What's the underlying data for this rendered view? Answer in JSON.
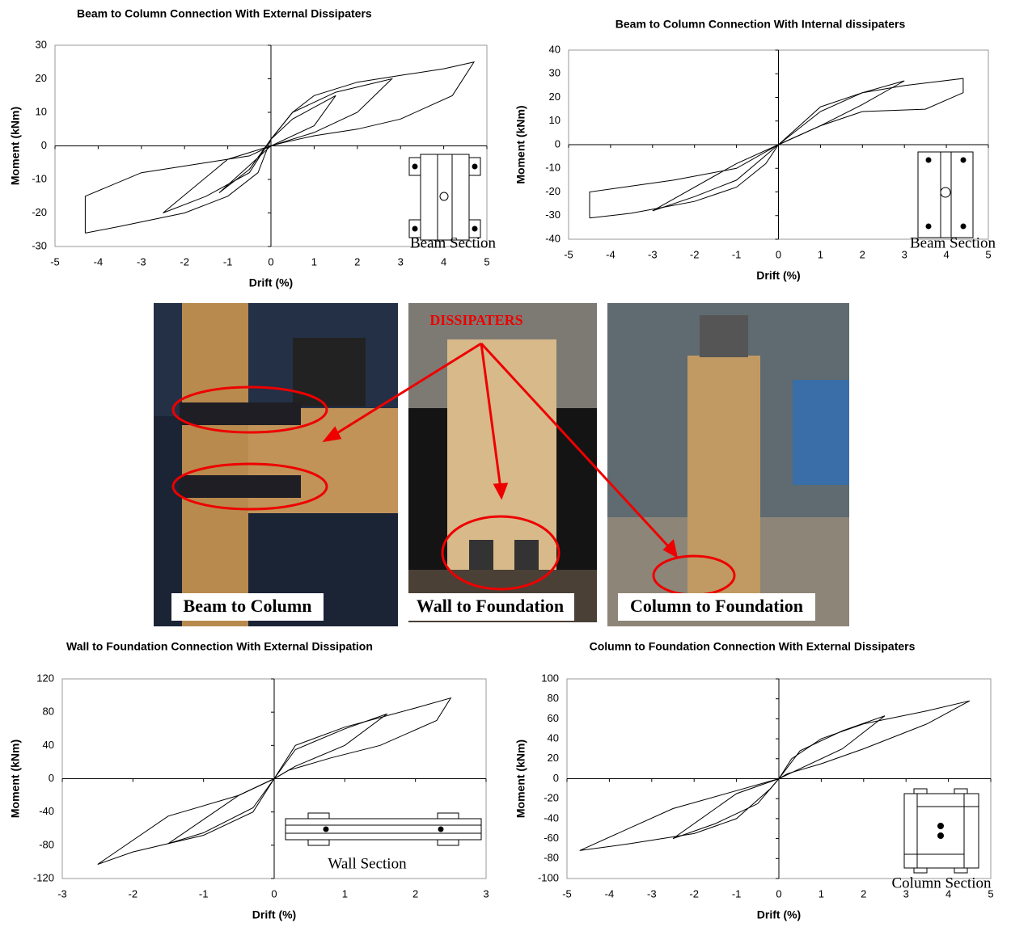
{
  "chart_data": [
    {
      "type": "line",
      "title": "Beam to Column Connection With External Dissipaters",
      "xlabel": "Drift (%)",
      "ylabel": "Moment (kNm)",
      "xlim": [
        -5,
        5
      ],
      "xticks": [
        -5,
        -4,
        -3,
        -2,
        -1,
        0,
        1,
        2,
        3,
        4,
        5
      ],
      "ylim": [
        -30,
        30
      ],
      "yticks": [
        -30,
        -20,
        -10,
        0,
        10,
        20,
        30
      ],
      "annotation": "Beam Section",
      "series": [
        {
          "color": "#000000",
          "x": [
            -4.3,
            -3.5,
            -2,
            -1,
            -0.3,
            0,
            0.5,
            1,
            2,
            3,
            4,
            4.7,
            4.2,
            3,
            2,
            1,
            0.3,
            0,
            -0.5,
            -1.5,
            -3,
            -4.3,
            -4.3
          ],
          "values": [
            -26,
            -24,
            -20,
            -15,
            -8,
            2,
            10,
            15,
            19,
            21,
            23,
            25,
            15,
            8,
            5,
            3,
            1,
            0,
            -3,
            -5,
            -8,
            -15,
            -26
          ]
        },
        {
          "color": "#000000",
          "x": [
            -2.5,
            -1.5,
            -0.5,
            0,
            0.5,
            1.5,
            2.8,
            2,
            1,
            0,
            -1,
            -2.5
          ],
          "values": [
            -20,
            -15,
            -8,
            2,
            10,
            16,
            20,
            10,
            4,
            0,
            -4,
            -20
          ]
        },
        {
          "color": "#000000",
          "x": [
            -1.2,
            -0.5,
            0,
            0.5,
            1.5,
            1,
            0,
            -1.2
          ],
          "values": [
            -14,
            -7,
            2,
            8,
            15,
            6,
            0,
            -14
          ]
        }
      ]
    },
    {
      "type": "line",
      "title": "Beam to Column Connection With Internal dissipaters",
      "xlabel": "Drift (%)",
      "ylabel": "Moment (kNm)",
      "xlim": [
        -5,
        5
      ],
      "xticks": [
        -5,
        -4,
        -3,
        -2,
        -1,
        0,
        1,
        2,
        3,
        4,
        5
      ],
      "ylim": [
        -40,
        40
      ],
      "yticks": [
        -40,
        -30,
        -20,
        -10,
        0,
        10,
        20,
        30,
        40
      ],
      "annotation": "Beam Section",
      "series": [
        {
          "color": "#000000",
          "x": [
            -4.5,
            -3.5,
            -2,
            -1,
            -0.3,
            0,
            0.5,
            1,
            2,
            3,
            4.4,
            4.4,
            3.5,
            2,
            1,
            0,
            -1,
            -2.5,
            -4.5,
            -4.5
          ],
          "values": [
            -31,
            -29,
            -24,
            -18,
            -8,
            0,
            8,
            16,
            22,
            25,
            28,
            22,
            15,
            14,
            8,
            0,
            -10,
            -15,
            -20,
            -31
          ]
        },
        {
          "color": "#000000",
          "x": [
            -3,
            -2,
            -1,
            0,
            1,
            2,
            3,
            2,
            1,
            0,
            -1,
            -3
          ],
          "values": [
            -28,
            -22,
            -15,
            0,
            14,
            22,
            27,
            17,
            8,
            0,
            -8,
            -28
          ]
        }
      ]
    },
    {
      "type": "line",
      "title": "Wall to Foundation Connection With External Dissipation",
      "xlabel": "Drift (%)",
      "ylabel": "Moment (kNm)",
      "xlim": [
        -3,
        3
      ],
      "xticks": [
        -3,
        -2,
        -1,
        0,
        1,
        2,
        3
      ],
      "ylim": [
        -120,
        120
      ],
      "yticks": [
        -120,
        -80,
        -40,
        0,
        40,
        80,
        120
      ],
      "annotation": "Wall Section",
      "series": [
        {
          "color": "#000000",
          "x": [
            -2.5,
            -2,
            -1,
            -0.3,
            0,
            0.3,
            1,
            2,
            2.5,
            2.3,
            1.5,
            0.8,
            0.2,
            0,
            -0.5,
            -1.5,
            -2.5
          ],
          "values": [
            -103,
            -88,
            -68,
            -40,
            0,
            40,
            62,
            85,
            97,
            70,
            40,
            25,
            10,
            0,
            -20,
            -45,
            -103
          ]
        },
        {
          "color": "#000000",
          "x": [
            -1.5,
            -1,
            -0.3,
            0,
            0.3,
            1,
            1.6,
            1,
            0.3,
            0,
            -0.5,
            -1.5
          ],
          "values": [
            -78,
            -65,
            -35,
            0,
            35,
            60,
            78,
            40,
            15,
            0,
            -20,
            -78
          ]
        }
      ]
    },
    {
      "type": "line",
      "title": "Column to Foundation Connection With External Dissipaters",
      "xlabel": "Drift (%)",
      "ylabel": "Moment (kNm)",
      "xlim": [
        -5,
        5
      ],
      "xticks": [
        -5,
        -4,
        -3,
        -2,
        -1,
        0,
        1,
        2,
        3,
        4,
        5
      ],
      "ylim": [
        -100,
        100
      ],
      "yticks": [
        -100,
        -80,
        -60,
        -40,
        -20,
        0,
        20,
        40,
        60,
        80,
        100
      ],
      "annotation": "Column Section",
      "series": [
        {
          "color": "#000000",
          "x": [
            -4.7,
            -3.5,
            -2,
            -1,
            -0.2,
            0,
            0.3,
            1,
            2,
            3.5,
            4.5,
            3.5,
            2,
            1,
            0.2,
            0,
            -1,
            -2.5,
            -4.7
          ],
          "values": [
            -72,
            -65,
            -55,
            -40,
            -10,
            0,
            20,
            40,
            55,
            68,
            78,
            55,
            30,
            15,
            5,
            0,
            -12,
            -30,
            -72
          ]
        },
        {
          "color": "#000000",
          "x": [
            -2.5,
            -1.5,
            -0.5,
            0,
            0.5,
            1.5,
            2.5,
            1.5,
            0.5,
            0,
            -1,
            -2.5
          ],
          "values": [
            -60,
            -45,
            -25,
            0,
            28,
            48,
            63,
            30,
            10,
            0,
            -15,
            -60
          ]
        }
      ]
    }
  ],
  "photos": {
    "annotation": "DISSIPATERS",
    "captions": [
      "Beam to Column",
      "Wall to Foundation",
      "Column to Foundation"
    ]
  }
}
